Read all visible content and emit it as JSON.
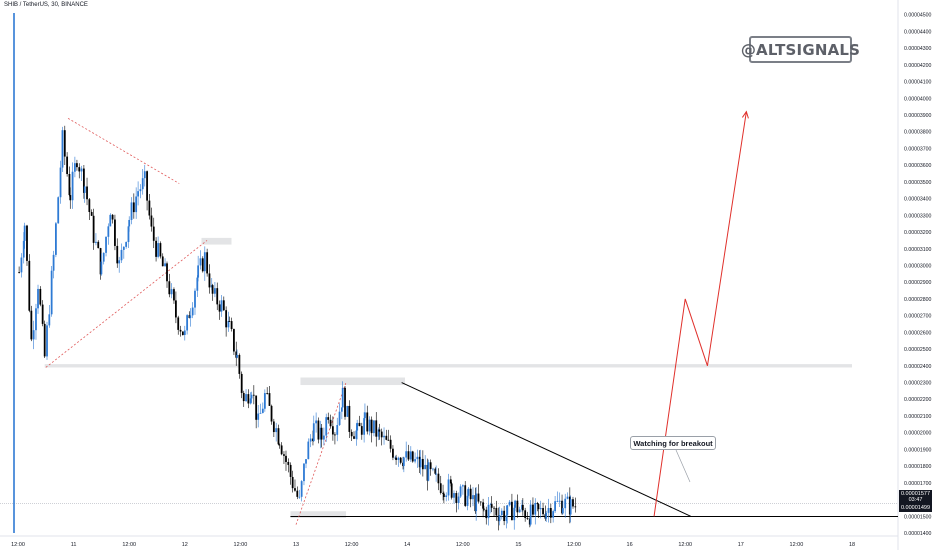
{
  "header": {
    "title": "SHIB / TetherUS, 30, BINANCE"
  },
  "watermark": "@ALTSIGNALS",
  "annotation": "Watching for breakout",
  "price_tags": {
    "last_price": "0.00001577",
    "countdown": "03:47",
    "support_price": "0.00001499",
    "last_color": "#131722",
    "support_color": "#131722"
  },
  "colors": {
    "up_candle": "#2e7ad4",
    "down_candle": "#000000",
    "pattern_lines": "#e05a5a",
    "projection": "#e0302b",
    "trendline": "#000000",
    "zones": "#e3e4e6"
  },
  "chart_data": {
    "type": "candlestick",
    "title": "SHIB / TetherUS, 30, BINANCE",
    "y_axis_ticks": [
      "0.00004500",
      "0.00004400",
      "0.00004300",
      "0.00004200",
      "0.00004100",
      "0.00004000",
      "0.00003900",
      "0.00003800",
      "0.00003700",
      "0.00003600",
      "0.00003500",
      "0.00003400",
      "0.00003300",
      "0.00003200",
      "0.00003100",
      "0.00003000",
      "0.00002900",
      "0.00002800",
      "0.00002700",
      "0.00002600",
      "0.00002500",
      "0.00002400",
      "0.00002300",
      "0.00002200",
      "0.00002100",
      "0.00002000",
      "0.00001900",
      "0.00001800",
      "0.00001700",
      "0.00001600",
      "0.00001500",
      "0.00001400"
    ],
    "x_axis_ticks": [
      "12:00",
      "11",
      "12:00",
      "12",
      "12:00",
      "13",
      "12:00",
      "14",
      "12:00",
      "15",
      "12:00",
      "16",
      "12:00",
      "17",
      "12:00",
      "18"
    ],
    "ylim": [
      1.4e-05,
      4.51e-05
    ],
    "x_days": [
      10.5,
      18.0
    ],
    "last_price": 1.577e-05,
    "support_level": 1.499e-05,
    "resistance_level": 2.4e-05,
    "ohlc_path": [
      [
        10.51,
        2.96e-05
      ],
      [
        10.56,
        3.25e-05
      ],
      [
        10.62,
        2.55e-05
      ],
      [
        10.68,
        2.9e-05
      ],
      [
        10.74,
        2.45e-05
      ],
      [
        10.82,
        3.05e-05
      ],
      [
        10.9,
        3.75e-05
      ],
      [
        10.97,
        3.42e-05
      ],
      [
        11.03,
        3.65e-05
      ],
      [
        11.1,
        3.48e-05
      ],
      [
        11.18,
        3.18e-05
      ],
      [
        11.25,
        2.98e-05
      ],
      [
        11.33,
        3.35e-05
      ],
      [
        11.41,
        3e-05
      ],
      [
        11.5,
        3.28e-05
      ],
      [
        11.58,
        3.45e-05
      ],
      [
        11.64,
        3.5e-05
      ],
      [
        11.7,
        3.2e-05
      ],
      [
        11.76,
        3.07e-05
      ],
      [
        11.84,
        2.92e-05
      ],
      [
        11.92,
        2.7e-05
      ],
      [
        12.0,
        2.58e-05
      ],
      [
        12.05,
        2.75e-05
      ],
      [
        12.12,
        2.95e-05
      ],
      [
        12.18,
        3.05e-05
      ],
      [
        12.25,
        2.82e-05
      ],
      [
        12.33,
        2.76e-05
      ],
      [
        12.4,
        2.62e-05
      ],
      [
        12.47,
        2.45e-05
      ],
      [
        12.53,
        2.18e-05
      ],
      [
        12.6,
        2.28e-05
      ],
      [
        12.66,
        2.05e-05
      ],
      [
        12.72,
        2.22e-05
      ],
      [
        12.78,
        2.1e-05
      ],
      [
        12.85,
        1.97e-05
      ],
      [
        12.91,
        1.83e-05
      ],
      [
        12.97,
        1.7e-05
      ],
      [
        13.03,
        1.58e-05
      ],
      [
        13.09,
        1.87e-05
      ],
      [
        13.16,
        2.03e-05
      ],
      [
        13.23,
        1.97e-05
      ],
      [
        13.29,
        2.13e-05
      ],
      [
        13.35,
        2.02e-05
      ],
      [
        13.42,
        2.22e-05
      ],
      [
        13.48,
        2.04e-05
      ],
      [
        13.55,
        2e-05
      ],
      [
        13.62,
        2.06e-05
      ],
      [
        13.68,
        2.03e-05
      ],
      [
        13.75,
        1.98e-05
      ],
      [
        13.83,
        1.92e-05
      ],
      [
        13.9,
        1.88e-05
      ],
      [
        13.97,
        1.85e-05
      ],
      [
        14.05,
        1.83e-05
      ],
      [
        14.12,
        1.81e-05
      ],
      [
        14.19,
        1.76e-05
      ],
      [
        14.26,
        1.71e-05
      ],
      [
        14.33,
        1.68e-05
      ],
      [
        14.4,
        1.66e-05
      ],
      [
        14.48,
        1.63e-05
      ],
      [
        14.55,
        1.61e-05
      ],
      [
        14.62,
        1.58e-05
      ],
      [
        14.69,
        1.53e-05
      ],
      [
        14.76,
        1.55e-05
      ],
      [
        14.83,
        1.52e-05
      ],
      [
        14.9,
        1.51e-05
      ],
      [
        14.97,
        1.56e-05
      ],
      [
        15.04,
        1.53e-05
      ],
      [
        15.11,
        1.51e-05
      ],
      [
        15.18,
        1.52e-05
      ],
      [
        15.25,
        1.54e-05
      ],
      [
        15.33,
        1.57e-05
      ],
      [
        15.4,
        1.58e-05
      ],
      [
        15.47,
        1.56e-05
      ],
      [
        15.52,
        1.57e-05
      ]
    ],
    "projection": [
      [
        16.22,
        1.5e-05
      ],
      [
        16.5,
        2.8e-05
      ],
      [
        16.7,
        2.4e-05
      ],
      [
        17.05,
        3.92e-05
      ]
    ],
    "descending_trendline": [
      [
        13.95,
        2.3e-05
      ],
      [
        16.55,
        1.5e-05
      ]
    ],
    "upper_pattern_lines": [
      [
        10.95,
        3.88e-05
      ],
      [
        11.95,
        3.49e-05
      ]
    ],
    "lower_pattern_lines": [
      [
        10.75,
        2.39e-05
      ],
      [
        12.2,
        3.15e-05
      ]
    ],
    "flag_lines": [
      [
        13.0,
        1.45e-05
      ],
      [
        13.45,
        2.3e-05
      ]
    ]
  }
}
